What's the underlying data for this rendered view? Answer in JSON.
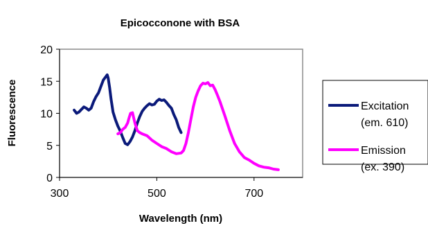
{
  "chart_data": {
    "type": "line",
    "title": "Epicocconone with BSA",
    "xlabel": "Wavelength (nm)",
    "ylabel": "Fluorescence",
    "xlim": [
      300,
      800
    ],
    "ylim": [
      0,
      20
    ],
    "xticks": [
      300,
      500,
      700
    ],
    "yticks": [
      0,
      5,
      10,
      15,
      20
    ],
    "grid": false,
    "legend_position": "right",
    "series": [
      {
        "name": "Excitation",
        "name_line2": "(em. 610)",
        "color": "#0b1a7a",
        "x": [
          330,
          335,
          340,
          345,
          350,
          355,
          360,
          365,
          370,
          375,
          380,
          385,
          390,
          395,
          398,
          400,
          403,
          406,
          410,
          415,
          420,
          425,
          430,
          435,
          440,
          445,
          450,
          455,
          460,
          465,
          470,
          475,
          480,
          485,
          490,
          495,
          500,
          505,
          510,
          515,
          520,
          525,
          530,
          535,
          540,
          545,
          550
        ],
        "y": [
          10.5,
          10.0,
          10.2,
          10.6,
          11.0,
          10.8,
          10.5,
          10.8,
          11.8,
          12.6,
          13.2,
          14.2,
          15.2,
          15.7,
          16.0,
          15.5,
          14.0,
          12.2,
          10.2,
          9.0,
          8.0,
          7.2,
          6.2,
          5.3,
          5.1,
          5.6,
          6.3,
          7.3,
          8.5,
          9.5,
          10.3,
          10.8,
          11.2,
          11.5,
          11.3,
          11.4,
          11.9,
          12.2,
          12.0,
          12.1,
          11.7,
          11.2,
          10.8,
          9.8,
          9.0,
          7.8,
          7.0
        ]
      },
      {
        "name": "Emission",
        "name_line2": "(ex. 390)",
        "color": "#ff00ff",
        "x": [
          420,
          425,
          430,
          435,
          440,
          443,
          446,
          450,
          455,
          460,
          465,
          470,
          480,
          490,
          500,
          510,
          520,
          530,
          540,
          550,
          555,
          560,
          565,
          570,
          575,
          580,
          585,
          590,
          595,
          600,
          605,
          610,
          615,
          620,
          625,
          630,
          640,
          650,
          660,
          670,
          680,
          690,
          700,
          710,
          720,
          730,
          740,
          750
        ],
        "y": [
          6.8,
          7.0,
          7.5,
          7.8,
          8.5,
          9.3,
          10.0,
          10.1,
          8.5,
          7.3,
          7.0,
          6.8,
          6.5,
          5.8,
          5.3,
          4.8,
          4.5,
          4.0,
          3.7,
          3.8,
          4.2,
          5.3,
          7.0,
          9.0,
          11.0,
          12.5,
          13.5,
          14.3,
          14.7,
          14.6,
          14.8,
          14.3,
          14.4,
          13.7,
          12.8,
          11.8,
          9.6,
          7.3,
          5.3,
          4.0,
          3.1,
          2.7,
          2.2,
          1.8,
          1.6,
          1.5,
          1.3,
          1.2
        ]
      }
    ]
  }
}
